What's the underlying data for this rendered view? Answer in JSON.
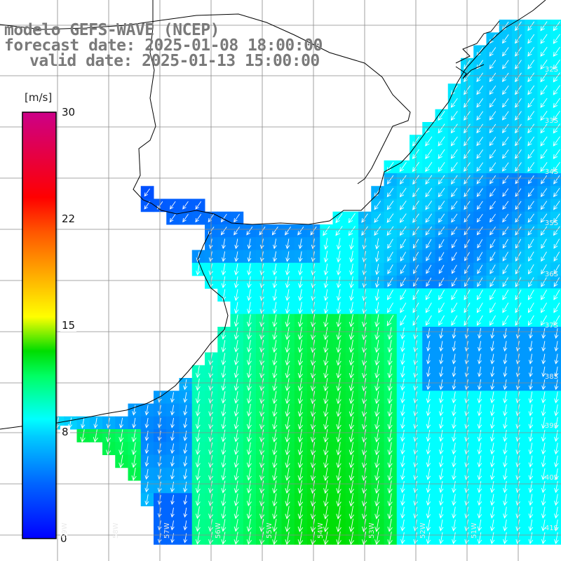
{
  "title": {
    "line1": "modelo GEFS-WAVE (NCEP)",
    "line2": "forecast date: 2025-01-08 18:00:00",
    "line3": "valid date: 2025-01-13 15:00:00"
  },
  "colorbar": {
    "unit": "[m/s]",
    "ticks": [
      "30",
      "22",
      "15",
      "8",
      "0"
    ],
    "range": [
      0,
      30
    ],
    "colors": [
      "#0000ff",
      "#00aaff",
      "#00ffff",
      "#00ff55",
      "#33dd00",
      "#ffff00",
      "#ff9900",
      "#ff0000",
      "#cc0066"
    ]
  },
  "map_labels": {
    "latitudes": [
      "32S",
      "33S",
      "34S",
      "35S",
      "36S",
      "37S",
      "38S",
      "39S",
      "40S",
      "41S"
    ],
    "longitudes": [
      "59W",
      "58W",
      "57W",
      "56W",
      "55W",
      "54W",
      "53W",
      "52W",
      "51W"
    ]
  },
  "colors": {
    "land": "#ffffff",
    "coast": "#000000",
    "grid": "#808080",
    "arrows": "#ffffff",
    "title": "#7a7a7a"
  }
}
